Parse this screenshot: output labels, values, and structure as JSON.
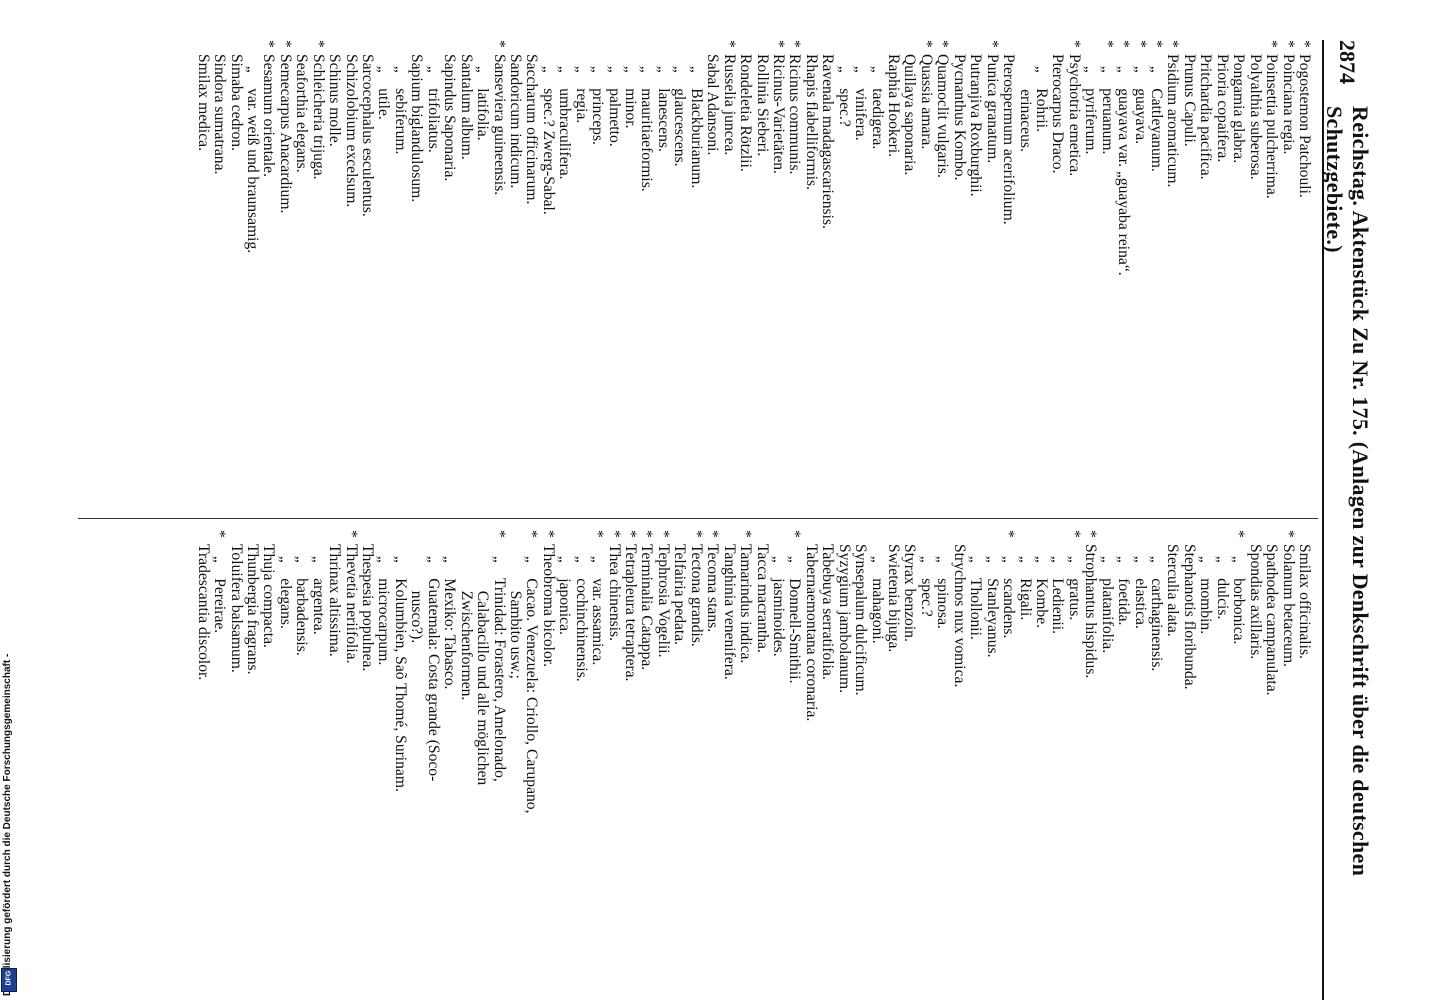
{
  "header": {
    "page_number": "2874",
    "title": "Reichstag. Aktenstück Zu Nr. 175. (Anlagen zur Denkschrift über die deutschen Schutzgebiete.)"
  },
  "columns": {
    "left": [
      {
        "star": "*",
        "text": "Pogostemon Patchouli."
      },
      {
        "star": "*",
        "text": "Poinciana regia."
      },
      {
        "star": "*",
        "text": "Poinsettia pulcherrima."
      },
      {
        "star": "",
        "text": "Polyalthia suberosa."
      },
      {
        "star": "",
        "text": "Pongamia glabra."
      },
      {
        "star": "",
        "text": "Prioria copaifera."
      },
      {
        "star": "",
        "text": "Pritchardia pacifica."
      },
      {
        "star": "",
        "text": "Prunus Capuli."
      },
      {
        "star": "*",
        "text": "Psidium aromaticum."
      },
      {
        "star": "*",
        "text": "   „    Cattleyanum."
      },
      {
        "star": "*",
        "text": "   „    guayava."
      },
      {
        "star": "*",
        "text": "   „    guayava var. „guayaba reina“."
      },
      {
        "star": "*",
        "text": "   „    peruanum."
      },
      {
        "star": "",
        "text": "   „    pyriferum."
      },
      {
        "star": "*",
        "text": "Psychotria emetica."
      },
      {
        "star": "",
        "text": "Pterocarpus Draco."
      },
      {
        "star": "",
        "text": "   „    Rohrii."
      },
      {
        "star": "",
        "text": "         erinaceus."
      },
      {
        "star": "",
        "text": "Pterospermum acerifolium."
      },
      {
        "star": "*",
        "text": "Punica granatum."
      },
      {
        "star": "",
        "text": "Putranjiva Roxburghii."
      },
      {
        "star": "",
        "text": "Pycnanthus Kombo."
      },
      {
        "star": "*",
        "text": "Quamoclit vulgaris."
      },
      {
        "star": "*",
        "text": "Quassia amara."
      },
      {
        "star": "",
        "text": "Quillaya saponaria."
      },
      {
        "star": "",
        "text": "Raphia Hookeri."
      },
      {
        "star": "",
        "text": "   „    taedigera."
      },
      {
        "star": "",
        "text": "   „    vinifera."
      },
      {
        "star": "",
        "text": "   „    spec.?"
      },
      {
        "star": "",
        "text": "Ravenala madagascariensis."
      },
      {
        "star": "",
        "text": "Rhapis flabelliformis."
      },
      {
        "star": "*",
        "text": "Ricinus communis."
      },
      {
        "star": "*",
        "text": "Ricinus-Varietäten."
      },
      {
        "star": "",
        "text": "Rollinia Sieberi."
      },
      {
        "star": "",
        "text": "Rondeletia Rötzlii."
      },
      {
        "star": "*",
        "text": "Russelia juncea."
      },
      {
        "star": "",
        "text": "Sabal Adansoni."
      },
      {
        "star": "",
        "text": "   „    Blackburianum."
      },
      {
        "star": "",
        "text": "   „    glaucescens."
      },
      {
        "star": "",
        "text": "   „    lanescens."
      },
      {
        "star": "",
        "text": "   „    mauritiaeformis."
      },
      {
        "star": "",
        "text": "   „    minor."
      },
      {
        "star": "",
        "text": "   „    palmetto."
      },
      {
        "star": "",
        "text": "   „    princeps."
      },
      {
        "star": "",
        "text": "   „    regia."
      },
      {
        "star": "",
        "text": "   „    umbraculifera."
      },
      {
        "star": "",
        "text": "   „    spec.? Zwerg-Sabal."
      },
      {
        "star": "",
        "text": "Saccharum officinarum."
      },
      {
        "star": "",
        "text": "Sandoricum indicum."
      },
      {
        "star": "*",
        "text": "Sanseviera guineensis."
      },
      {
        "star": "",
        "text": "   „    latifolia."
      },
      {
        "star": "",
        "text": "Santalum album."
      },
      {
        "star": "",
        "text": "Sapindus Saponaria."
      },
      {
        "star": "",
        "text": "   „    trifoliatus."
      },
      {
        "star": "",
        "text": "Sapium biglandulosum."
      },
      {
        "star": "",
        "text": "   „    sebiferum."
      },
      {
        "star": "",
        "text": "   „    utile."
      },
      {
        "star": "",
        "text": "Sarcocephalus esculentus."
      },
      {
        "star": "",
        "text": "Schizolobium excelsum."
      },
      {
        "star": "",
        "text": "Schinus molle."
      },
      {
        "star": "*",
        "text": "Schleicheria trijuga."
      },
      {
        "star": "",
        "text": "Seaforthia elegans."
      },
      {
        "star": "*",
        "text": "Semecarpus Anacardium."
      },
      {
        "star": "*",
        "text": "Sesamum orientale."
      },
      {
        "star": "",
        "text": "   „    var. weiß und braunsamig."
      },
      {
        "star": "",
        "text": "Simaba cedron."
      },
      {
        "star": "",
        "text": "Sindora sumatrana."
      },
      {
        "star": "",
        "text": "Smilax medica."
      }
    ],
    "right": [
      {
        "star": "",
        "text": "Smilax officinalis."
      },
      {
        "star": "*",
        "text": "Solanum betaceum."
      },
      {
        "star": "",
        "text": "Spathodea campanulata."
      },
      {
        "star": "",
        "text": "Spondias axillaris."
      },
      {
        "star": "*",
        "text": "   „    borbonica."
      },
      {
        "star": "",
        "text": "   „    dulcis."
      },
      {
        "star": "",
        "text": "   „    mombin."
      },
      {
        "star": "",
        "text": "Stephanotis floribunda."
      },
      {
        "star": "",
        "text": "Sterculia alata."
      },
      {
        "star": "",
        "text": "   „    carthaginensis."
      },
      {
        "star": "",
        "text": "   „    elastica."
      },
      {
        "star": "",
        "text": "   „    foetida."
      },
      {
        "star": "",
        "text": "   „    platanifolia."
      },
      {
        "star": "*",
        "text": "Strophantus hispidus."
      },
      {
        "star": "*",
        "text": "   „    gratus."
      },
      {
        "star": "",
        "text": "   „    Ledienii."
      },
      {
        "star": "",
        "text": "   „    Kombe."
      },
      {
        "star": "",
        "text": "   „    Rigali."
      },
      {
        "star": "*",
        "text": "   „    scandens."
      },
      {
        "star": "",
        "text": "   „    Stanleyanus."
      },
      {
        "star": "",
        "text": "   „    Thollonii."
      },
      {
        "star": "",
        "text": "Strychnos nux vomica."
      },
      {
        "star": "",
        "text": "   „    spinosa."
      },
      {
        "star": "",
        "text": "   „    spec.?"
      },
      {
        "star": "",
        "text": "Styrax benzoin."
      },
      {
        "star": "",
        "text": "Swietenia bijuga."
      },
      {
        "star": "",
        "text": "   „    mahagoni."
      },
      {
        "star": "",
        "text": "Synsepalum dulcificum."
      },
      {
        "star": "",
        "text": "Syzygium jambolanum."
      },
      {
        "star": "",
        "text": "Tabebuya serratifolia."
      },
      {
        "star": "",
        "text": "Tabernaemontana coronaria."
      },
      {
        "star": "*",
        "text": "   „    Donnell-Smithii."
      },
      {
        "star": "",
        "text": "   „    jasminoides."
      },
      {
        "star": "",
        "text": "Tacca macrantha."
      },
      {
        "star": "*",
        "text": "Tamarindus indica."
      },
      {
        "star": "",
        "text": "Tanghinia venenifera."
      },
      {
        "star": "*",
        "text": "Tecoma stans."
      },
      {
        "star": "*",
        "text": "Tectona grandis."
      },
      {
        "star": "",
        "text": "Telfairia pedata."
      },
      {
        "star": "*",
        "text": "Tephrosia Vogelii."
      },
      {
        "star": "*",
        "text": "Terminalia Catappa."
      },
      {
        "star": "*",
        "text": "Tetrapleura tetraptera."
      },
      {
        "star": "*",
        "text": "Thea chinensis."
      },
      {
        "star": "*",
        "text": "   „    var. assamica."
      },
      {
        "star": "",
        "text": "   „    cochinchinensis."
      },
      {
        "star": "",
        "text": "   „    japonica."
      },
      {
        "star": "*",
        "text": "Theobroma bicolor."
      },
      {
        "star": "*",
        "text": "   „    Cacao. Venezuela: Criollo, Carupano,"
      },
      {
        "star": "",
        "text": "            Sambito usw.;"
      },
      {
        "star": "*",
        "text": "   „    Trinidad: Forastero, Amelonado,"
      },
      {
        "star": "",
        "text": "            Calabacillo und alle möglichen"
      },
      {
        "star": "",
        "text": "            Zwischenformen."
      },
      {
        "star": "",
        "text": "   „    Mexiko: Tabasco."
      },
      {
        "star": "",
        "text": "   „    Guatemala: Costa grande (Soco-"
      },
      {
        "star": "",
        "text": "            nusco?)."
      },
      {
        "star": "",
        "text": "   „    Kolumbien, Saõ Thomé, Surinam."
      },
      {
        "star": "",
        "text": "   „    microcarpum."
      },
      {
        "star": "",
        "text": "Thespesia populnea."
      },
      {
        "star": "*",
        "text": "Thevetia neriifolia."
      },
      {
        "star": "",
        "text": "Thrinax altissima."
      },
      {
        "star": "",
        "text": "   „    argentea."
      },
      {
        "star": "",
        "text": "   „    barbadensis."
      },
      {
        "star": "",
        "text": "   „    elegans."
      },
      {
        "star": "",
        "text": "Thuja compacta."
      },
      {
        "star": "",
        "text": "Thunbergia fragrans."
      },
      {
        "star": "",
        "text": "Toluifera balsamum."
      },
      {
        "star": "*",
        "text": "   „    Pereirae."
      },
      {
        "star": "",
        "text": "Tradescantia discolor."
      }
    ]
  },
  "footer": {
    "text": "Digitalisierung gefördert durch die Deutsche Forschungsgemeinschaft -",
    "logo_label": "DFG",
    "logo_color": "#1f3f8f"
  }
}
